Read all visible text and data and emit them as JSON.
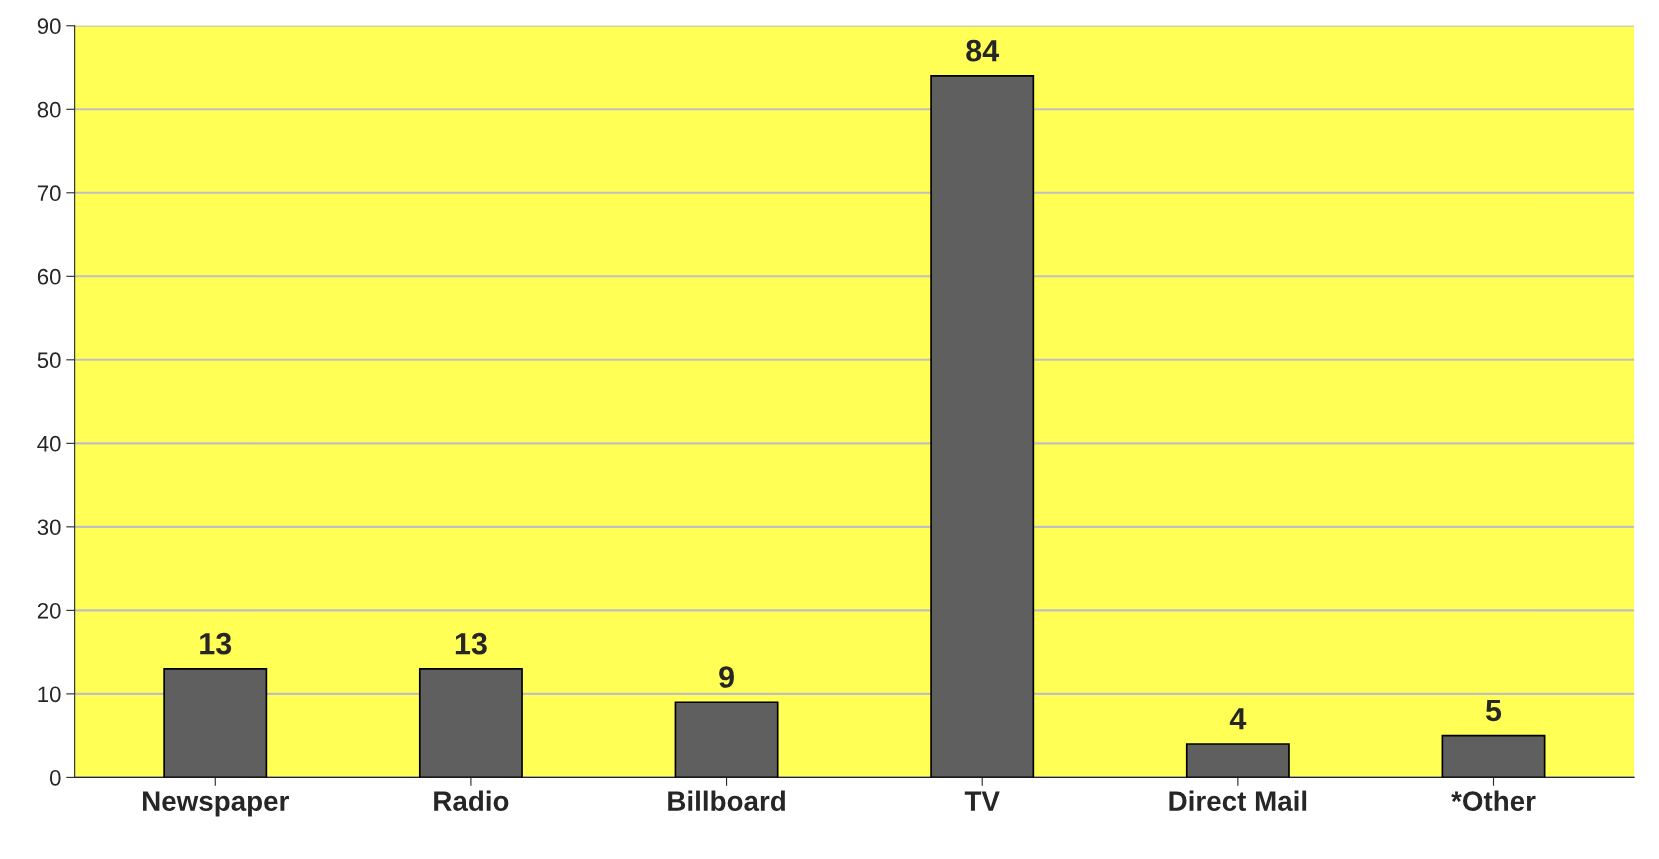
{
  "chart_data": {
    "type": "bar",
    "categories": [
      "Newspaper",
      "Radio",
      "Billboard",
      "TV",
      "Direct Mail",
      "*Other"
    ],
    "values": [
      13,
      13,
      9,
      84,
      4,
      5
    ],
    "color": "#5f5f5f",
    "ylim": [
      0,
      90
    ],
    "yticks": [
      0,
      10,
      20,
      30,
      40,
      50,
      60,
      70,
      80,
      90
    ],
    "grid": "y",
    "data_labels": true
  }
}
